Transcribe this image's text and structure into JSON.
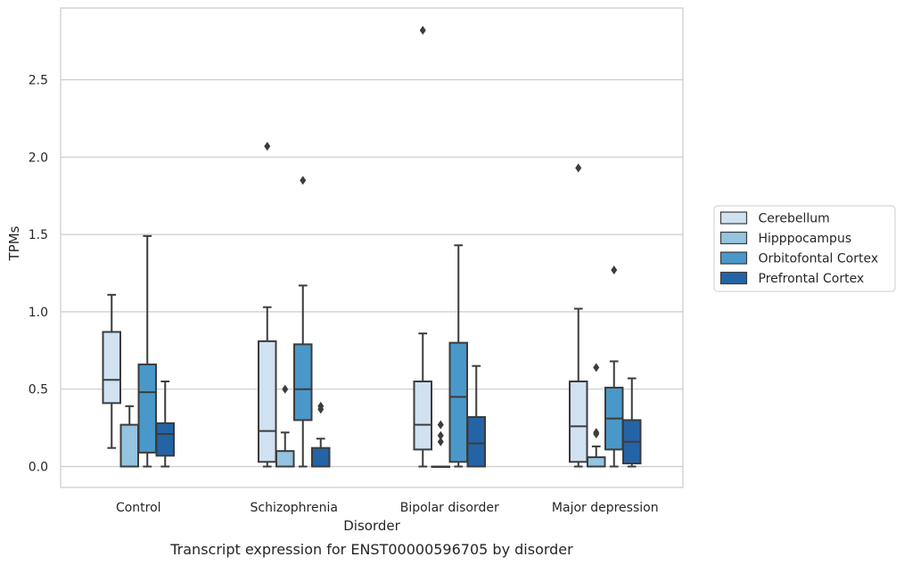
{
  "chart_data": {
    "type": "boxplot",
    "xlabel": "Disorder",
    "ylabel": "TPMs",
    "caption": "Transcript expression for ENST00000596705 by disorder",
    "ylim": [
      -0.14,
      2.97
    ],
    "yticks": [
      0.0,
      0.5,
      1.0,
      1.5,
      2.0,
      2.5
    ],
    "ytick_labels": [
      "0.0",
      "0.5",
      "1.0",
      "1.5",
      "2.0",
      "2.5"
    ],
    "grid": "horizontal",
    "legend_position": "right",
    "categories": [
      "Control",
      "Schizophrenia",
      "Bipolar disorder",
      "Major depression"
    ],
    "series": [
      {
        "name": "Cerebellum",
        "color": "#d0e1f2",
        "boxes": [
          {
            "whislo": 0.12,
            "q1": 0.41,
            "med": 0.56,
            "q3": 0.87,
            "whishi": 1.11,
            "fliers": []
          },
          {
            "whislo": 0.0,
            "q1": 0.03,
            "med": 0.23,
            "q3": 0.81,
            "whishi": 1.03,
            "fliers": [
              2.07
            ]
          },
          {
            "whislo": 0.0,
            "q1": 0.11,
            "med": 0.27,
            "q3": 0.55,
            "whishi": 0.86,
            "fliers": [
              2.82
            ]
          },
          {
            "whislo": 0.0,
            "q1": 0.03,
            "med": 0.26,
            "q3": 0.55,
            "whishi": 1.02,
            "fliers": [
              1.93
            ]
          }
        ]
      },
      {
        "name": "Hipppocampus",
        "color": "#94c4df",
        "boxes": [
          {
            "whislo": 0.0,
            "q1": 0.0,
            "med": 0.0,
            "q3": 0.27,
            "whishi": 0.39,
            "fliers": []
          },
          {
            "whislo": 0.0,
            "q1": 0.0,
            "med": 0.0,
            "q3": 0.1,
            "whishi": 0.22,
            "fliers": [
              0.5
            ]
          },
          {
            "whislo": 0.0,
            "q1": 0.0,
            "med": 0.0,
            "q3": 0.0,
            "whishi": 0.0,
            "fliers": [
              0.27,
              0.2,
              0.16
            ]
          },
          {
            "whislo": 0.0,
            "q1": 0.0,
            "med": 0.0,
            "q3": 0.06,
            "whishi": 0.13,
            "fliers": [
              0.64,
              0.22,
              0.21
            ]
          }
        ]
      },
      {
        "name": "Orbitofontal Cortex",
        "color": "#4a98c9",
        "boxes": [
          {
            "whislo": 0.0,
            "q1": 0.09,
            "med": 0.48,
            "q3": 0.66,
            "whishi": 1.49,
            "fliers": []
          },
          {
            "whislo": 0.0,
            "q1": 0.3,
            "med": 0.5,
            "q3": 0.79,
            "whishi": 1.17,
            "fliers": [
              1.85
            ]
          },
          {
            "whislo": 0.0,
            "q1": 0.03,
            "med": 0.45,
            "q3": 0.8,
            "whishi": 1.43,
            "fliers": []
          },
          {
            "whislo": 0.0,
            "q1": 0.11,
            "med": 0.31,
            "q3": 0.51,
            "whishi": 0.68,
            "fliers": [
              1.27
            ]
          }
        ]
      },
      {
        "name": "Prefrontal Cortex",
        "color": "#2464a6",
        "boxes": [
          {
            "whislo": 0.0,
            "q1": 0.07,
            "med": 0.21,
            "q3": 0.28,
            "whishi": 0.55,
            "fliers": []
          },
          {
            "whislo": 0.0,
            "q1": 0.0,
            "med": 0.0,
            "q3": 0.12,
            "whishi": 0.18,
            "fliers": [
              0.39,
              0.37
            ]
          },
          {
            "whislo": 0.0,
            "q1": 0.0,
            "med": 0.15,
            "q3": 0.32,
            "whishi": 0.65,
            "fliers": []
          },
          {
            "whislo": 0.0,
            "q1": 0.02,
            "med": 0.16,
            "q3": 0.3,
            "whishi": 0.57,
            "fliers": []
          }
        ]
      }
    ]
  }
}
